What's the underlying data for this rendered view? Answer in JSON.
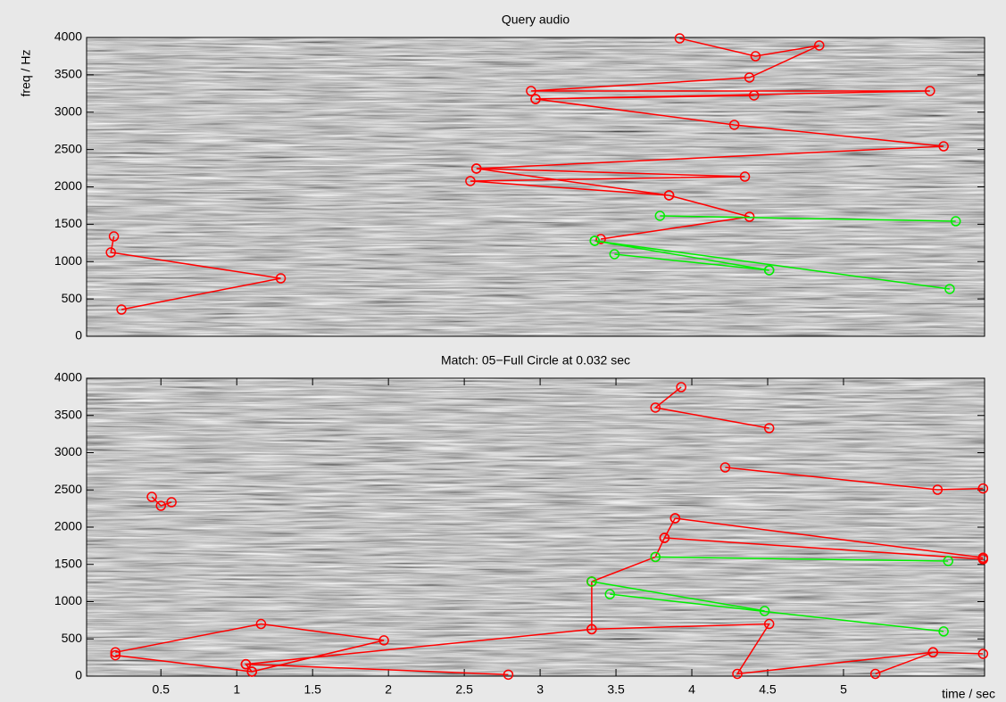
{
  "chart_data": [
    {
      "type": "line",
      "title": "Query audio",
      "y_label": "freq / Hz",
      "xlim": [
        0.01,
        5.93
      ],
      "ylim": [
        0,
        4000
      ],
      "yticks": [
        0,
        500,
        1000,
        1500,
        2000,
        2500,
        3000,
        3500,
        4000
      ],
      "series": [
        {
          "color": "#ff0000",
          "x": [
            0.19,
            0.17,
            1.29,
            0.24,
            null,
            3.92,
            4.42,
            4.84,
            4.38,
            2.94,
            5.57,
            2.97,
            4.41,
            null,
            2.97,
            4.28,
            5.66,
            2.58,
            4.35,
            2.54,
            3.85,
            2.58,
            null,
            3.85,
            4.38,
            3.4
          ],
          "values": [
            1337,
            1122,
            776,
            358,
            null,
            3988,
            3749,
            3893,
            3463,
            3284,
            3284,
            3176,
            3224,
            null,
            3176,
            2830,
            2543,
            2245,
            2137,
            2078,
            1887,
            2245,
            null,
            1887,
            1600,
            1301
          ]
        },
        {
          "color": "#00ee00",
          "x": [
            3.79,
            5.74,
            null,
            3.36,
            5.7,
            null,
            3.36,
            4.51,
            null,
            3.49,
            4.51
          ],
          "values": [
            1612,
            1540,
            null,
            1278,
            633,
            null,
            1278,
            884,
            null,
            1099,
            884
          ]
        }
      ]
    },
    {
      "type": "line",
      "title": "Match: 05−Full Circle at 0.032 sec",
      "x_label": "time / sec",
      "xlim": [
        0.01,
        5.93
      ],
      "ylim": [
        0,
        4000
      ],
      "yticks": [
        0,
        500,
        1000,
        1500,
        2000,
        2500,
        3000,
        3500,
        4000
      ],
      "xticks": [
        0.5,
        1,
        1.5,
        2,
        2.5,
        3,
        3.5,
        4,
        4.5,
        5
      ],
      "series": [
        {
          "color": "#ff0000",
          "x": [
            3.93,
            3.76,
            4.51,
            null,
            4.22,
            5.62,
            5.92,
            null,
            0.44,
            0.5,
            0.57,
            null,
            3.89,
            5.92,
            null,
            3.82,
            5.92,
            null,
            3.34,
            3.76,
            3.82,
            3.89,
            null,
            0.2,
            1.16,
            1.97,
            1.1,
            1.06,
            2.79,
            null,
            0.2,
            1.1,
            null,
            1.06,
            3.34,
            3.34,
            null,
            3.34,
            4.51,
            4.3,
            5.59,
            5.21,
            null,
            5.59,
            5.92
          ],
          "values": [
            3880,
            3605,
            3329,
            null,
            2802,
            2503,
            2520,
            null,
            2407,
            2287,
            2335,
            null,
            2120,
            1590,
            null,
            1856,
            1570,
            null,
            1270,
            1600,
            1856,
            2120,
            null,
            320,
            700,
            480,
            60,
            160,
            20,
            null,
            280,
            60,
            null,
            160,
            630,
            1270,
            null,
            630,
            700,
            30,
            320,
            30,
            null,
            320,
            300
          ]
        },
        {
          "color": "#00ee00",
          "x": [
            3.76,
            5.69,
            null,
            3.34,
            4.48,
            null,
            3.46,
            5.66
          ],
          "values": [
            1600,
            1545,
            null,
            1270,
            875,
            null,
            1100,
            600
          ]
        }
      ]
    }
  ]
}
